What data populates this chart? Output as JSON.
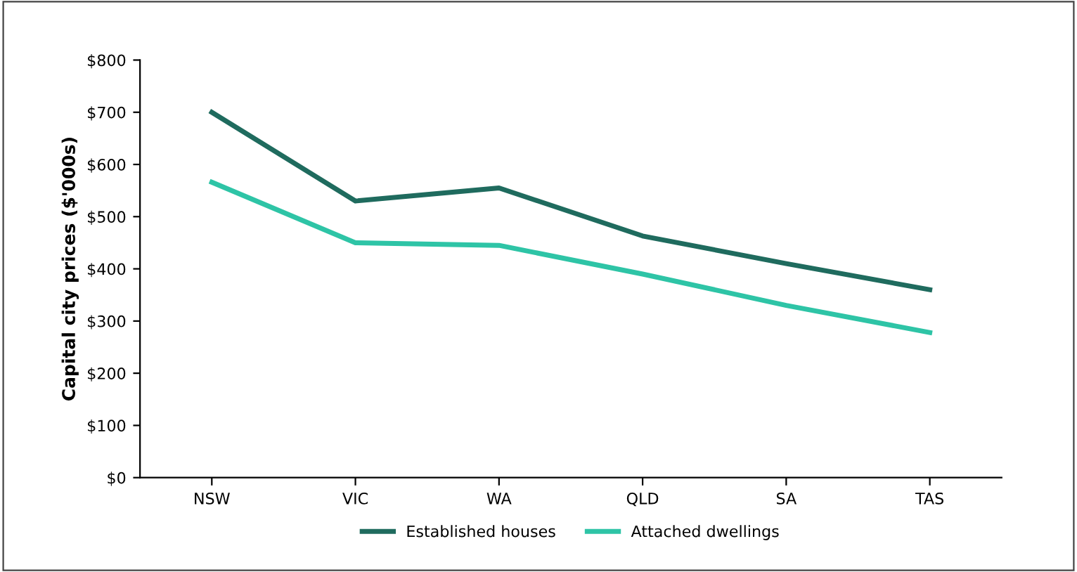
{
  "chart_data": {
    "type": "line",
    "ylabel": "Capital city prices ($'000s)",
    "categories": [
      "NSW",
      "VIC",
      "WA",
      "QLD",
      "SA",
      "TAS"
    ],
    "series": [
      {
        "name": "Established houses",
        "color": "#1f6b5e",
        "values": [
          700,
          530,
          555,
          463,
          410,
          360
        ]
      },
      {
        "name": "Attached dwellings",
        "color": "#2ec4a6",
        "values": [
          566,
          450,
          445,
          390,
          330,
          278
        ]
      }
    ],
    "ylim": [
      0,
      800
    ],
    "yticks": [
      {
        "value": 0,
        "label": "$0"
      },
      {
        "value": 100,
        "label": "$100"
      },
      {
        "value": 200,
        "label": "$200"
      },
      {
        "value": 300,
        "label": "$300"
      },
      {
        "value": 400,
        "label": "$400"
      },
      {
        "value": 500,
        "label": "$500"
      },
      {
        "value": 600,
        "label": "$600"
      },
      {
        "value": 700,
        "label": "$700"
      },
      {
        "value": 800,
        "label": "$800"
      }
    ],
    "grid": false,
    "legend": "bottom",
    "marker": "none",
    "line_style": "solid"
  }
}
